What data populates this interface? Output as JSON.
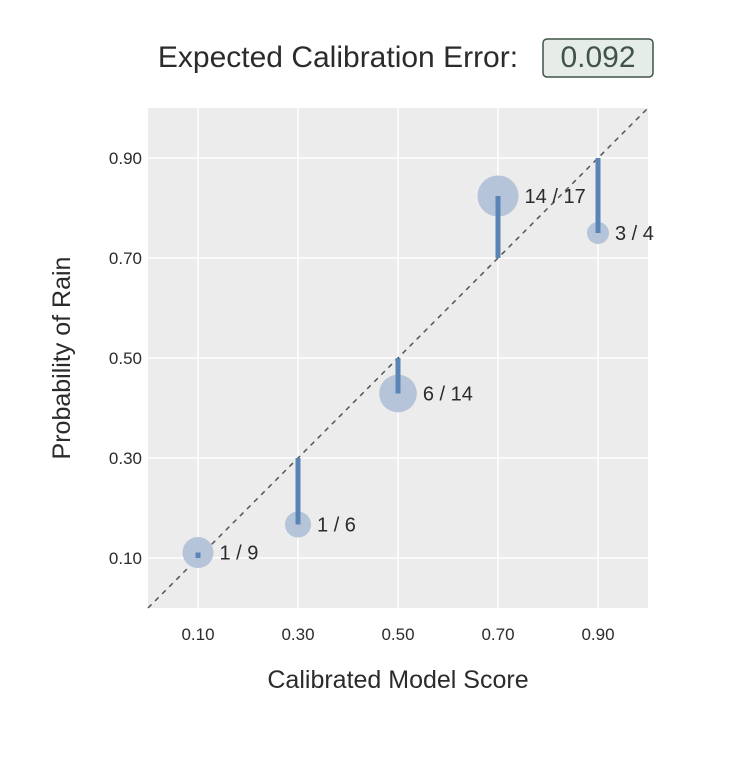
{
  "title": {
    "label": "Expected Calibration Error:",
    "value": "0.092"
  },
  "chart_data": {
    "type": "scatter",
    "xlabel": "Calibrated Model Score",
    "ylabel": "Probability of Rain",
    "xlim": [
      0.0,
      1.0
    ],
    "ylim": [
      0.0,
      1.0
    ],
    "xticks": [
      "0.10",
      "0.30",
      "0.50",
      "0.70",
      "0.90"
    ],
    "yticks": [
      "0.10",
      "0.30",
      "0.50",
      "0.70",
      "0.90"
    ],
    "grid": true,
    "diagonal": true,
    "points": [
      {
        "x": 0.1,
        "y": 0.111,
        "k": 1,
        "n": 9,
        "label": "1 / 9"
      },
      {
        "x": 0.3,
        "y": 0.167,
        "k": 1,
        "n": 6,
        "label": "1 / 6"
      },
      {
        "x": 0.5,
        "y": 0.429,
        "k": 6,
        "n": 14,
        "label": "6 / 14"
      },
      {
        "x": 0.7,
        "y": 0.824,
        "k": 14,
        "n": 17,
        "label": "14 / 17"
      },
      {
        "x": 0.9,
        "y": 0.75,
        "k": 3,
        "n": 4,
        "label": "3 / 4"
      }
    ],
    "colors": {
      "panel": "#ececec",
      "grid": "#ffffff",
      "bubble": "#b5c4d8",
      "error_bar": "#5a84b5",
      "diagonal": "#555555"
    }
  }
}
